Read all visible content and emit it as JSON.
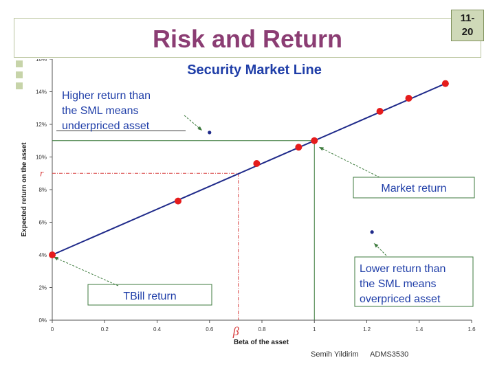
{
  "slide": {
    "number": "11-\n20",
    "title": "Risk and Return"
  },
  "footer": {
    "author": "Semih Yildirim",
    "course": "ADMS3530"
  },
  "colors": {
    "title": "#8b3d73",
    "line": "#1f2a8a",
    "point": "#e51c1c",
    "callout_border": "#3c7a3c",
    "callout_text": "#1f3ea8",
    "guide": "#d84040"
  },
  "chart_data": {
    "type": "line",
    "title": "Security Market Line",
    "xlabel": "Beta of the asset",
    "ylabel": "Expected return on the asset",
    "xlim": [
      0,
      1.6
    ],
    "ylim": [
      0,
      0.16
    ],
    "x_ticks": [
      "0",
      "0.2",
      "0.4",
      "0.6",
      "0.8",
      "1",
      "1.2",
      "1.4",
      "1.6"
    ],
    "y_ticks": [
      "0%",
      "2%",
      "4%",
      "6%",
      "8%",
      "10%",
      "12%",
      "14%",
      "16%"
    ],
    "series": [
      {
        "x": [
          0,
          0.48,
          0.78,
          0.94,
          1.0,
          1.25,
          1.36,
          1.5
        ],
        "y": [
          0.04,
          0.073,
          0.096,
          0.106,
          0.11,
          0.128,
          0.136,
          0.145
        ]
      }
    ],
    "line_endpoints": {
      "x": [
        0,
        1.5
      ],
      "y": [
        0.04,
        0.145
      ]
    },
    "off_line_points": [
      {
        "x": 0.6,
        "y": 0.115
      },
      {
        "x": 1.22,
        "y": 0.054
      }
    ],
    "annotations": {
      "r_label": "r",
      "beta_label": "β",
      "underpriced": "Higher return than the SML means underpriced asset",
      "overpriced": "Lower return than the SML means overpriced asset",
      "market": "Market return",
      "tbill": "TBill return"
    },
    "guides": {
      "beta": 0.71,
      "r": 0.09,
      "market_beta": 1.0,
      "market_return": 0.11,
      "underpriced_y": 0.116
    }
  }
}
